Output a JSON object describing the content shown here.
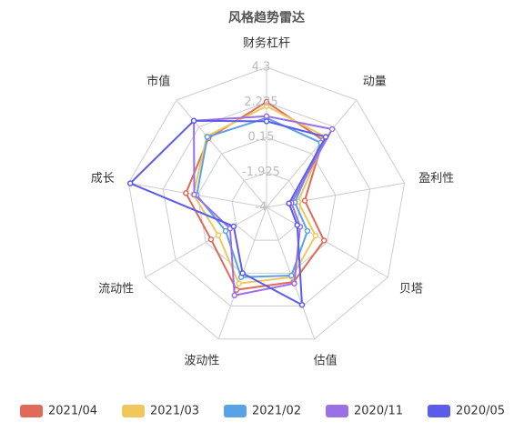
{
  "chart_data": {
    "type": "radar",
    "title": "风格趋势雷达",
    "indicators": [
      "财务杠杆",
      "动量",
      "盈利性",
      "贝塔",
      "估值",
      "波动性",
      "流动性",
      "成长",
      "市值"
    ],
    "ylim": [
      -4,
      4.3
    ],
    "yticks": [
      4.3,
      2.225,
      0.15,
      -1.925,
      -4
    ],
    "grid": true,
    "series": [
      {
        "name": "2021/04",
        "color": "#e06a5a",
        "values": [
          2.25,
          1.2,
          -1.7,
          -0.07,
          0.7,
          1.2,
          -0.2,
          0.85,
          1.35
        ]
      },
      {
        "name": "2021/03",
        "color": "#f0c75a",
        "values": [
          2.0,
          1.45,
          -2.1,
          -0.65,
          0.4,
          0.8,
          -0.7,
          0.4,
          1.5
        ]
      },
      {
        "name": "2021/02",
        "color": "#5aa2e6",
        "values": [
          1.3,
          1.0,
          -2.3,
          -1.2,
          0.3,
          0.4,
          -1.2,
          0.2,
          1.45
        ]
      },
      {
        "name": "2020/11",
        "color": "#9b6fe6",
        "values": [
          1.4,
          2.05,
          -2.5,
          -1.7,
          0.8,
          1.55,
          -1.5,
          0.35,
          2.7
        ]
      },
      {
        "name": "2020/05",
        "color": "#5b5ce8",
        "values": [
          1.1,
          1.45,
          -2.65,
          -1.9,
          2.15,
          0.15,
          -1.75,
          4.2,
          2.7
        ]
      }
    ],
    "legend": "bottom"
  }
}
